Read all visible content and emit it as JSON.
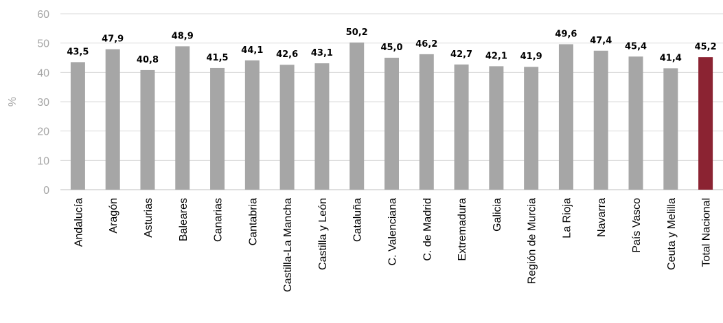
{
  "chart_data": {
    "type": "bar",
    "title": "",
    "xlabel": "",
    "ylabel": "%",
    "ylim": [
      0,
      60
    ],
    "yticks": [
      0,
      10,
      20,
      30,
      40,
      50,
      60
    ],
    "grid": true,
    "categories": [
      "Andalucía",
      "Aragón",
      "Asturias",
      "Baleares",
      "Canarias",
      "Cantabria",
      "Castilla-La Mancha",
      "Castilla y León",
      "Cataluña",
      "C. Valenciana",
      "C. de Madrid",
      "Extremadura",
      "Galicia",
      "Región de Murcia",
      "La Rioja",
      "Navarra",
      "País Vasco",
      "Ceuta y Melilla",
      "Total Nacional"
    ],
    "values": [
      43.5,
      47.9,
      40.8,
      48.9,
      41.5,
      44.1,
      42.6,
      43.1,
      50.2,
      45.0,
      46.2,
      42.7,
      42.1,
      41.9,
      49.6,
      47.4,
      45.4,
      41.4,
      45.2
    ],
    "value_labels": [
      "43,5",
      "47,9",
      "40,8",
      "48,9",
      "41,5",
      "44,1",
      "42,6",
      "43,1",
      "50,2",
      "45,0",
      "46,2",
      "42,7",
      "42,1",
      "41,9",
      "49,6",
      "47,4",
      "45,4",
      "41,4",
      "45,2"
    ],
    "colors": {
      "default_bar": "#a6a6a6",
      "highlight_bar": "#8b2332"
    },
    "highlight_category": "Total Nacional"
  }
}
